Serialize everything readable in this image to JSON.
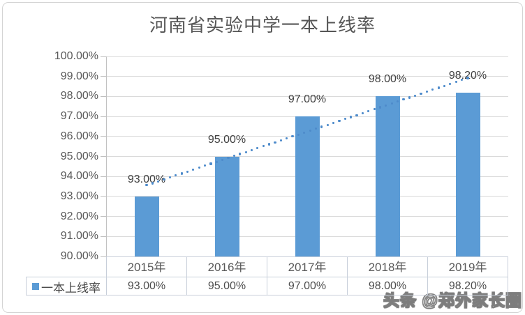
{
  "chart_data": {
    "type": "bar",
    "title": "河南省实验中学一本上线率",
    "categories": [
      "2015年",
      "2016年",
      "2017年",
      "2018年",
      "2019年"
    ],
    "series": [
      {
        "name": "一本上线率",
        "values": [
          93.0,
          95.0,
          97.0,
          98.0,
          98.2
        ]
      }
    ],
    "value_labels": [
      "93.00%",
      "95.00%",
      "97.00%",
      "98.00%",
      "98.20%"
    ],
    "table_values": [
      "93.00%",
      "95.00%",
      "97.00%",
      "98.00%",
      "98.20%"
    ],
    "legend_label": "一本上线率",
    "ylim": [
      90,
      100
    ],
    "ytick_step": 1,
    "ytick_labels": [
      "90.00%",
      "91.00%",
      "92.00%",
      "93.00%",
      "94.00%",
      "95.00%",
      "96.00%",
      "97.00%",
      "98.00%",
      "99.00%",
      "100.00%"
    ],
    "grid": true,
    "trendline": true,
    "trendline_style": "dotted",
    "data_table_shown": true,
    "legend_position": "table-left",
    "colors": {
      "bar": "#5b9bd5",
      "trendline": "#4e8bcb",
      "gridline": "#dadada",
      "axis": "#bfbfbf",
      "table_border": "#c8cfda",
      "text": "#595959",
      "title_text": "#565656"
    }
  },
  "watermark": "头条 @郑外家长圈"
}
